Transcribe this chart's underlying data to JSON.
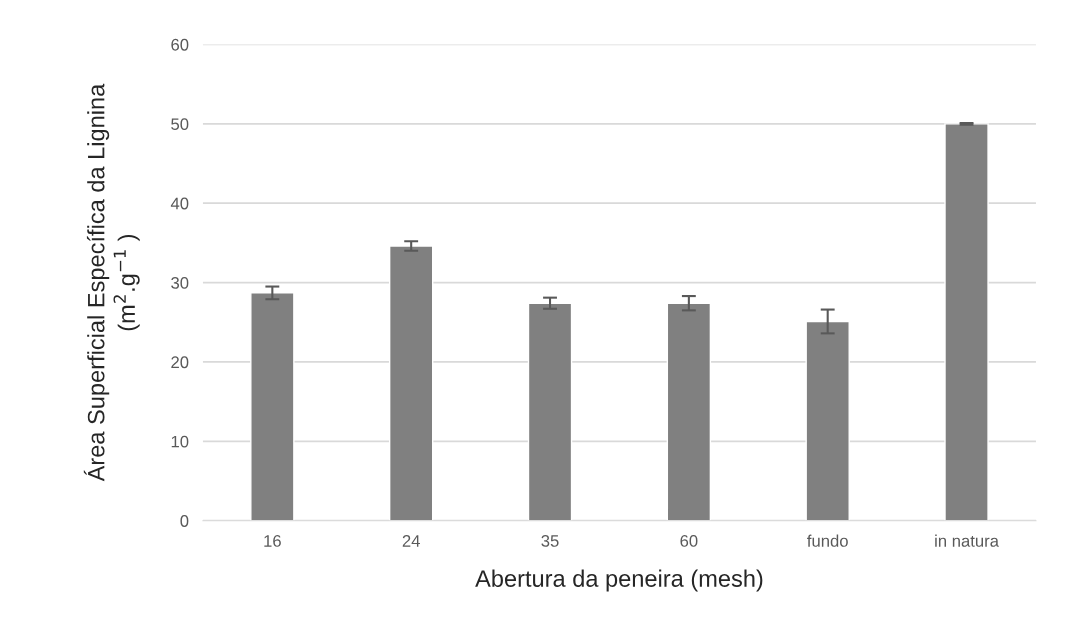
{
  "chart_data": {
    "type": "bar",
    "xlabel": "Abertura da peneira (mesh)",
    "ylabel": "Área Superficial Específica da Lignina\n(m$^{2}$.g$^{−1}$ )",
    "categories": [
      "16",
      "24",
      "35",
      "60",
      "fundo",
      "in natura"
    ],
    "values": [
      28.7,
      34.6,
      27.4,
      27.4,
      25.1,
      50.0
    ],
    "errors": [
      0.8,
      0.6,
      0.7,
      0.9,
      1.5,
      0.1
    ],
    "color": "#808080",
    "ylim": [
      0,
      60
    ],
    "yticks": [
      0,
      10,
      20,
      30,
      40,
      50,
      60
    ],
    "grid": "y",
    "legend": false
  }
}
